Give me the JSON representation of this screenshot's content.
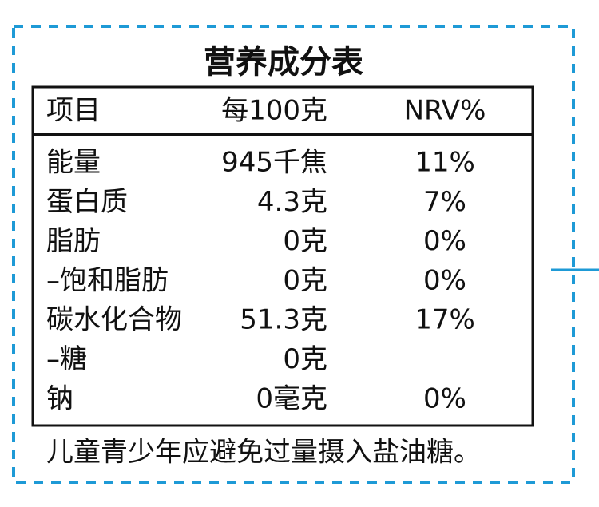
{
  "title": "营养成分表",
  "table": {
    "header": [
      "项目",
      "每100克",
      "NRV%"
    ],
    "rows": [
      [
        "能量",
        "945千焦",
        "11%"
      ],
      [
        "蛋白质",
        "4.3克",
        "7%"
      ],
      [
        "脂肪",
        "0克",
        "0%"
      ],
      [
        "–饱和脂肪",
        "0克",
        "0%"
      ],
      [
        "碳水化合物",
        "51.3克",
        "17%"
      ],
      [
        "–糖",
        "0克"
      ],
      [
        "钠",
        "0毫克",
        "0%"
      ]
    ]
  },
  "note": "儿童青少年应避免过量摄入盐油糖。"
}
